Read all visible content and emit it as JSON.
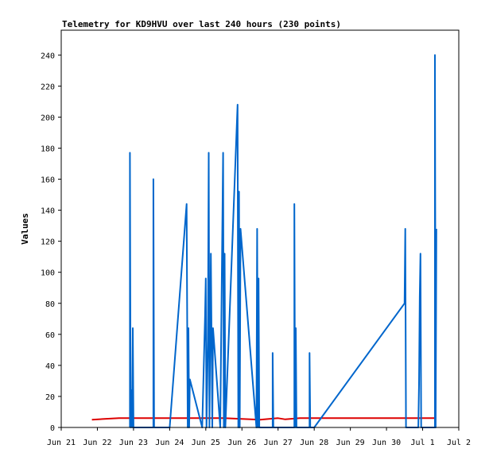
{
  "chart_data": {
    "type": "line",
    "title": "Telemetry for KD9HVU over last 240 hours (230 points)",
    "xlabel": "",
    "ylabel": "Values",
    "xlim": [
      0,
      11
    ],
    "ylim": [
      0,
      256
    ],
    "x_ticks": [
      {
        "x": 0,
        "label": "Jun 21"
      },
      {
        "x": 1,
        "label": "Jun 22"
      },
      {
        "x": 2,
        "label": "Jun 23"
      },
      {
        "x": 3,
        "label": "Jun 24"
      },
      {
        "x": 4,
        "label": "Jun 25"
      },
      {
        "x": 5,
        "label": "Jun 26"
      },
      {
        "x": 6,
        "label": "Jun 27"
      },
      {
        "x": 7,
        "label": "Jun 28"
      },
      {
        "x": 8,
        "label": "Jun 29"
      },
      {
        "x": 9,
        "label": "Jun 30"
      },
      {
        "x": 10,
        "label": "Jul 1"
      },
      {
        "x": 11,
        "label": "Jul 2"
      }
    ],
    "y_ticks": [
      0,
      20,
      40,
      60,
      80,
      100,
      120,
      140,
      160,
      180,
      200,
      220,
      240
    ],
    "grid": false,
    "series": [
      {
        "color": "#dd0000",
        "points": [
          [
            0.85,
            5
          ],
          [
            1.2,
            5.5
          ],
          [
            1.6,
            6
          ],
          [
            2.0,
            6
          ],
          [
            2.8,
            6
          ],
          [
            3.5,
            6
          ],
          [
            4.5,
            6
          ],
          [
            5.0,
            5.5
          ],
          [
            5.5,
            5
          ],
          [
            6.0,
            6
          ],
          [
            6.2,
            5.2
          ],
          [
            6.6,
            6
          ],
          [
            7.0,
            6
          ],
          [
            8.0,
            6
          ],
          [
            9.0,
            6
          ],
          [
            10.0,
            6
          ],
          [
            10.35,
            6
          ]
        ]
      },
      {
        "color": "#0066cc",
        "points": [
          [
            1.9,
            0
          ],
          [
            1.9,
            177
          ],
          [
            1.92,
            0
          ],
          [
            1.94,
            24
          ],
          [
            1.96,
            0
          ],
          [
            1.98,
            64
          ],
          [
            2.0,
            0
          ],
          [
            2.55,
            0
          ],
          [
            2.55,
            160
          ],
          [
            2.57,
            0
          ],
          [
            3.0,
            0
          ],
          [
            3.47,
            144
          ],
          [
            3.5,
            0
          ],
          [
            3.52,
            64
          ],
          [
            3.54,
            0
          ],
          [
            3.56,
            31
          ],
          [
            3.9,
            0
          ],
          [
            3.98,
            72
          ],
          [
            4.0,
            96
          ],
          [
            4.02,
            0
          ],
          [
            4.06,
            56
          ],
          [
            4.08,
            177
          ],
          [
            4.1,
            0
          ],
          [
            4.14,
            112
          ],
          [
            4.18,
            0
          ],
          [
            4.2,
            64
          ],
          [
            4.4,
            0
          ],
          [
            4.48,
            177
          ],
          [
            4.5,
            0
          ],
          [
            4.52,
            112
          ],
          [
            4.54,
            0
          ],
          [
            4.88,
            208
          ],
          [
            4.9,
            0
          ],
          [
            4.92,
            152
          ],
          [
            4.94,
            0
          ],
          [
            4.96,
            128
          ],
          [
            5.4,
            0
          ],
          [
            5.42,
            128
          ],
          [
            5.44,
            0
          ],
          [
            5.46,
            96
          ],
          [
            5.48,
            0
          ],
          [
            5.85,
            0
          ],
          [
            5.85,
            48
          ],
          [
            5.87,
            0
          ],
          [
            6.45,
            0
          ],
          [
            6.45,
            144
          ],
          [
            6.47,
            0
          ],
          [
            6.49,
            64
          ],
          [
            6.51,
            0
          ],
          [
            6.87,
            0
          ],
          [
            6.87,
            48
          ],
          [
            6.89,
            0
          ],
          [
            7.0,
            0
          ],
          [
            9.5,
            80
          ],
          [
            9.52,
            128
          ],
          [
            9.54,
            0
          ],
          [
            9.88,
            0
          ],
          [
            9.9,
            28
          ],
          [
            9.92,
            84
          ],
          [
            9.94,
            112
          ],
          [
            9.96,
            0
          ],
          [
            10.34,
            0
          ],
          [
            10.34,
            240
          ],
          [
            10.36,
            0
          ],
          [
            10.38,
            128
          ]
        ]
      }
    ]
  }
}
